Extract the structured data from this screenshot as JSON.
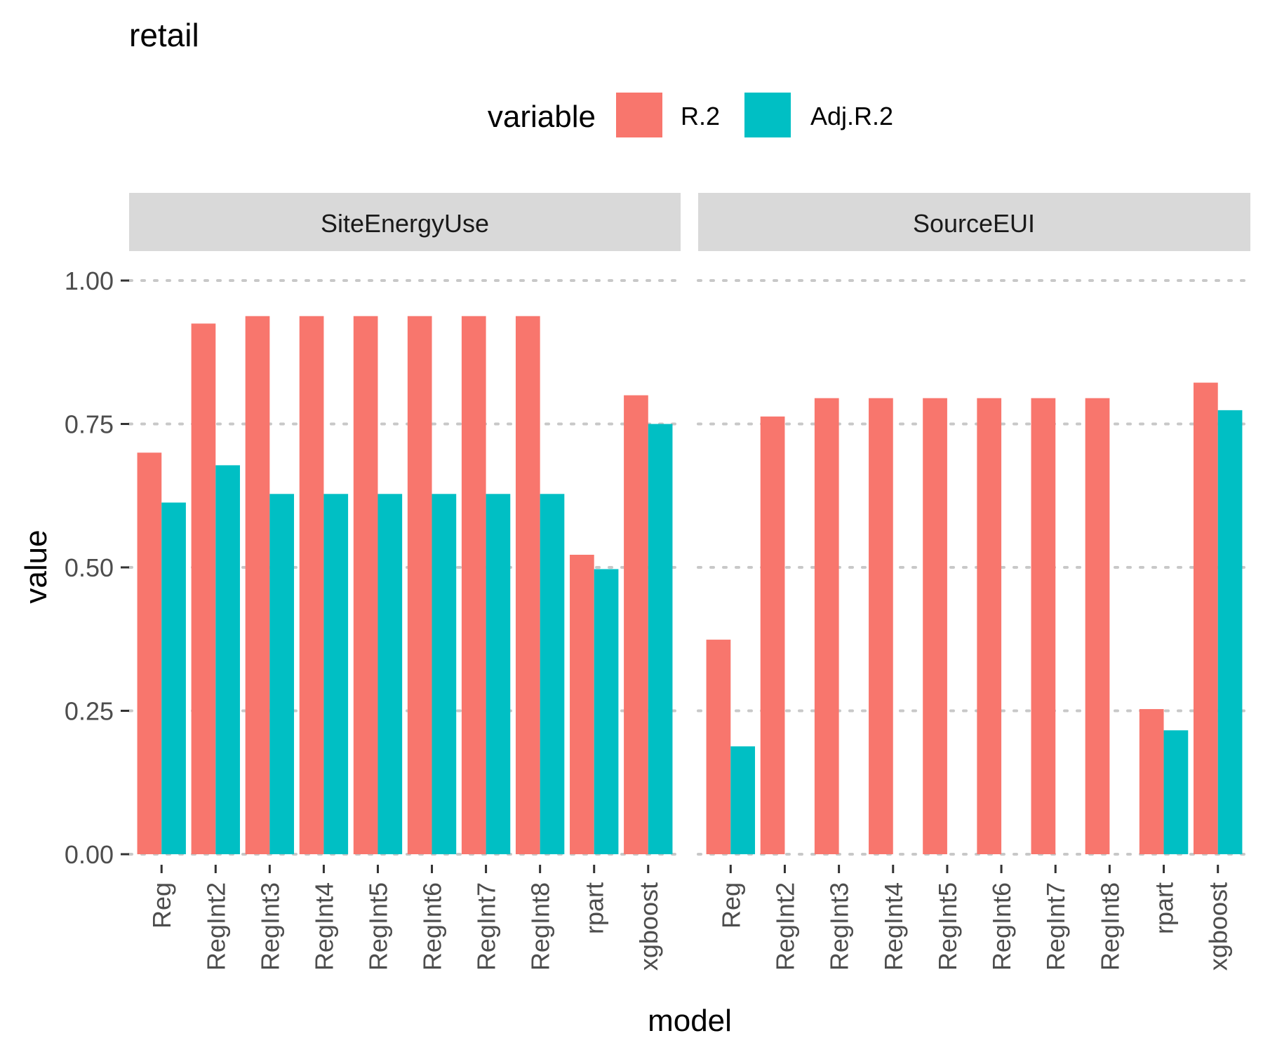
{
  "chart_data": {
    "type": "bar",
    "title": "retail",
    "xlabel": "model",
    "ylabel": "value",
    "legend": {
      "title": "variable",
      "position": "top",
      "items": [
        {
          "name": "R.2",
          "color": "#F8766D"
        },
        {
          "name": "Adj.R.2",
          "color": "#00BFC4"
        }
      ]
    },
    "ylim": [
      0,
      1
    ],
    "yticks": [
      "0.00",
      "0.25",
      "0.50",
      "0.75",
      "1.00"
    ],
    "grid": "dotted horizontal major lines",
    "categories": [
      "Reg",
      "RegInt2",
      "RegInt3",
      "RegInt4",
      "RegInt5",
      "RegInt6",
      "RegInt7",
      "RegInt8",
      "rpart",
      "xgboost"
    ],
    "facets": [
      {
        "label": "SiteEnergyUse",
        "series": [
          {
            "name": "R.2",
            "values": [
              0.7,
              0.925,
              0.938,
              0.938,
              0.938,
              0.938,
              0.938,
              0.938,
              0.522,
              0.8
            ]
          },
          {
            "name": "Adj.R.2",
            "values": [
              0.613,
              0.678,
              0.628,
              0.628,
              0.628,
              0.628,
              0.628,
              0.628,
              0.497,
              0.75
            ]
          }
        ]
      },
      {
        "label": "SourceEUI",
        "series": [
          {
            "name": "R.2",
            "values": [
              0.374,
              0.763,
              0.795,
              0.795,
              0.795,
              0.795,
              0.795,
              0.795,
              0.253,
              0.822
            ]
          },
          {
            "name": "Adj.R.2",
            "values": [
              0.188,
              null,
              null,
              null,
              null,
              null,
              null,
              null,
              0.216,
              0.774
            ]
          }
        ]
      }
    ]
  }
}
